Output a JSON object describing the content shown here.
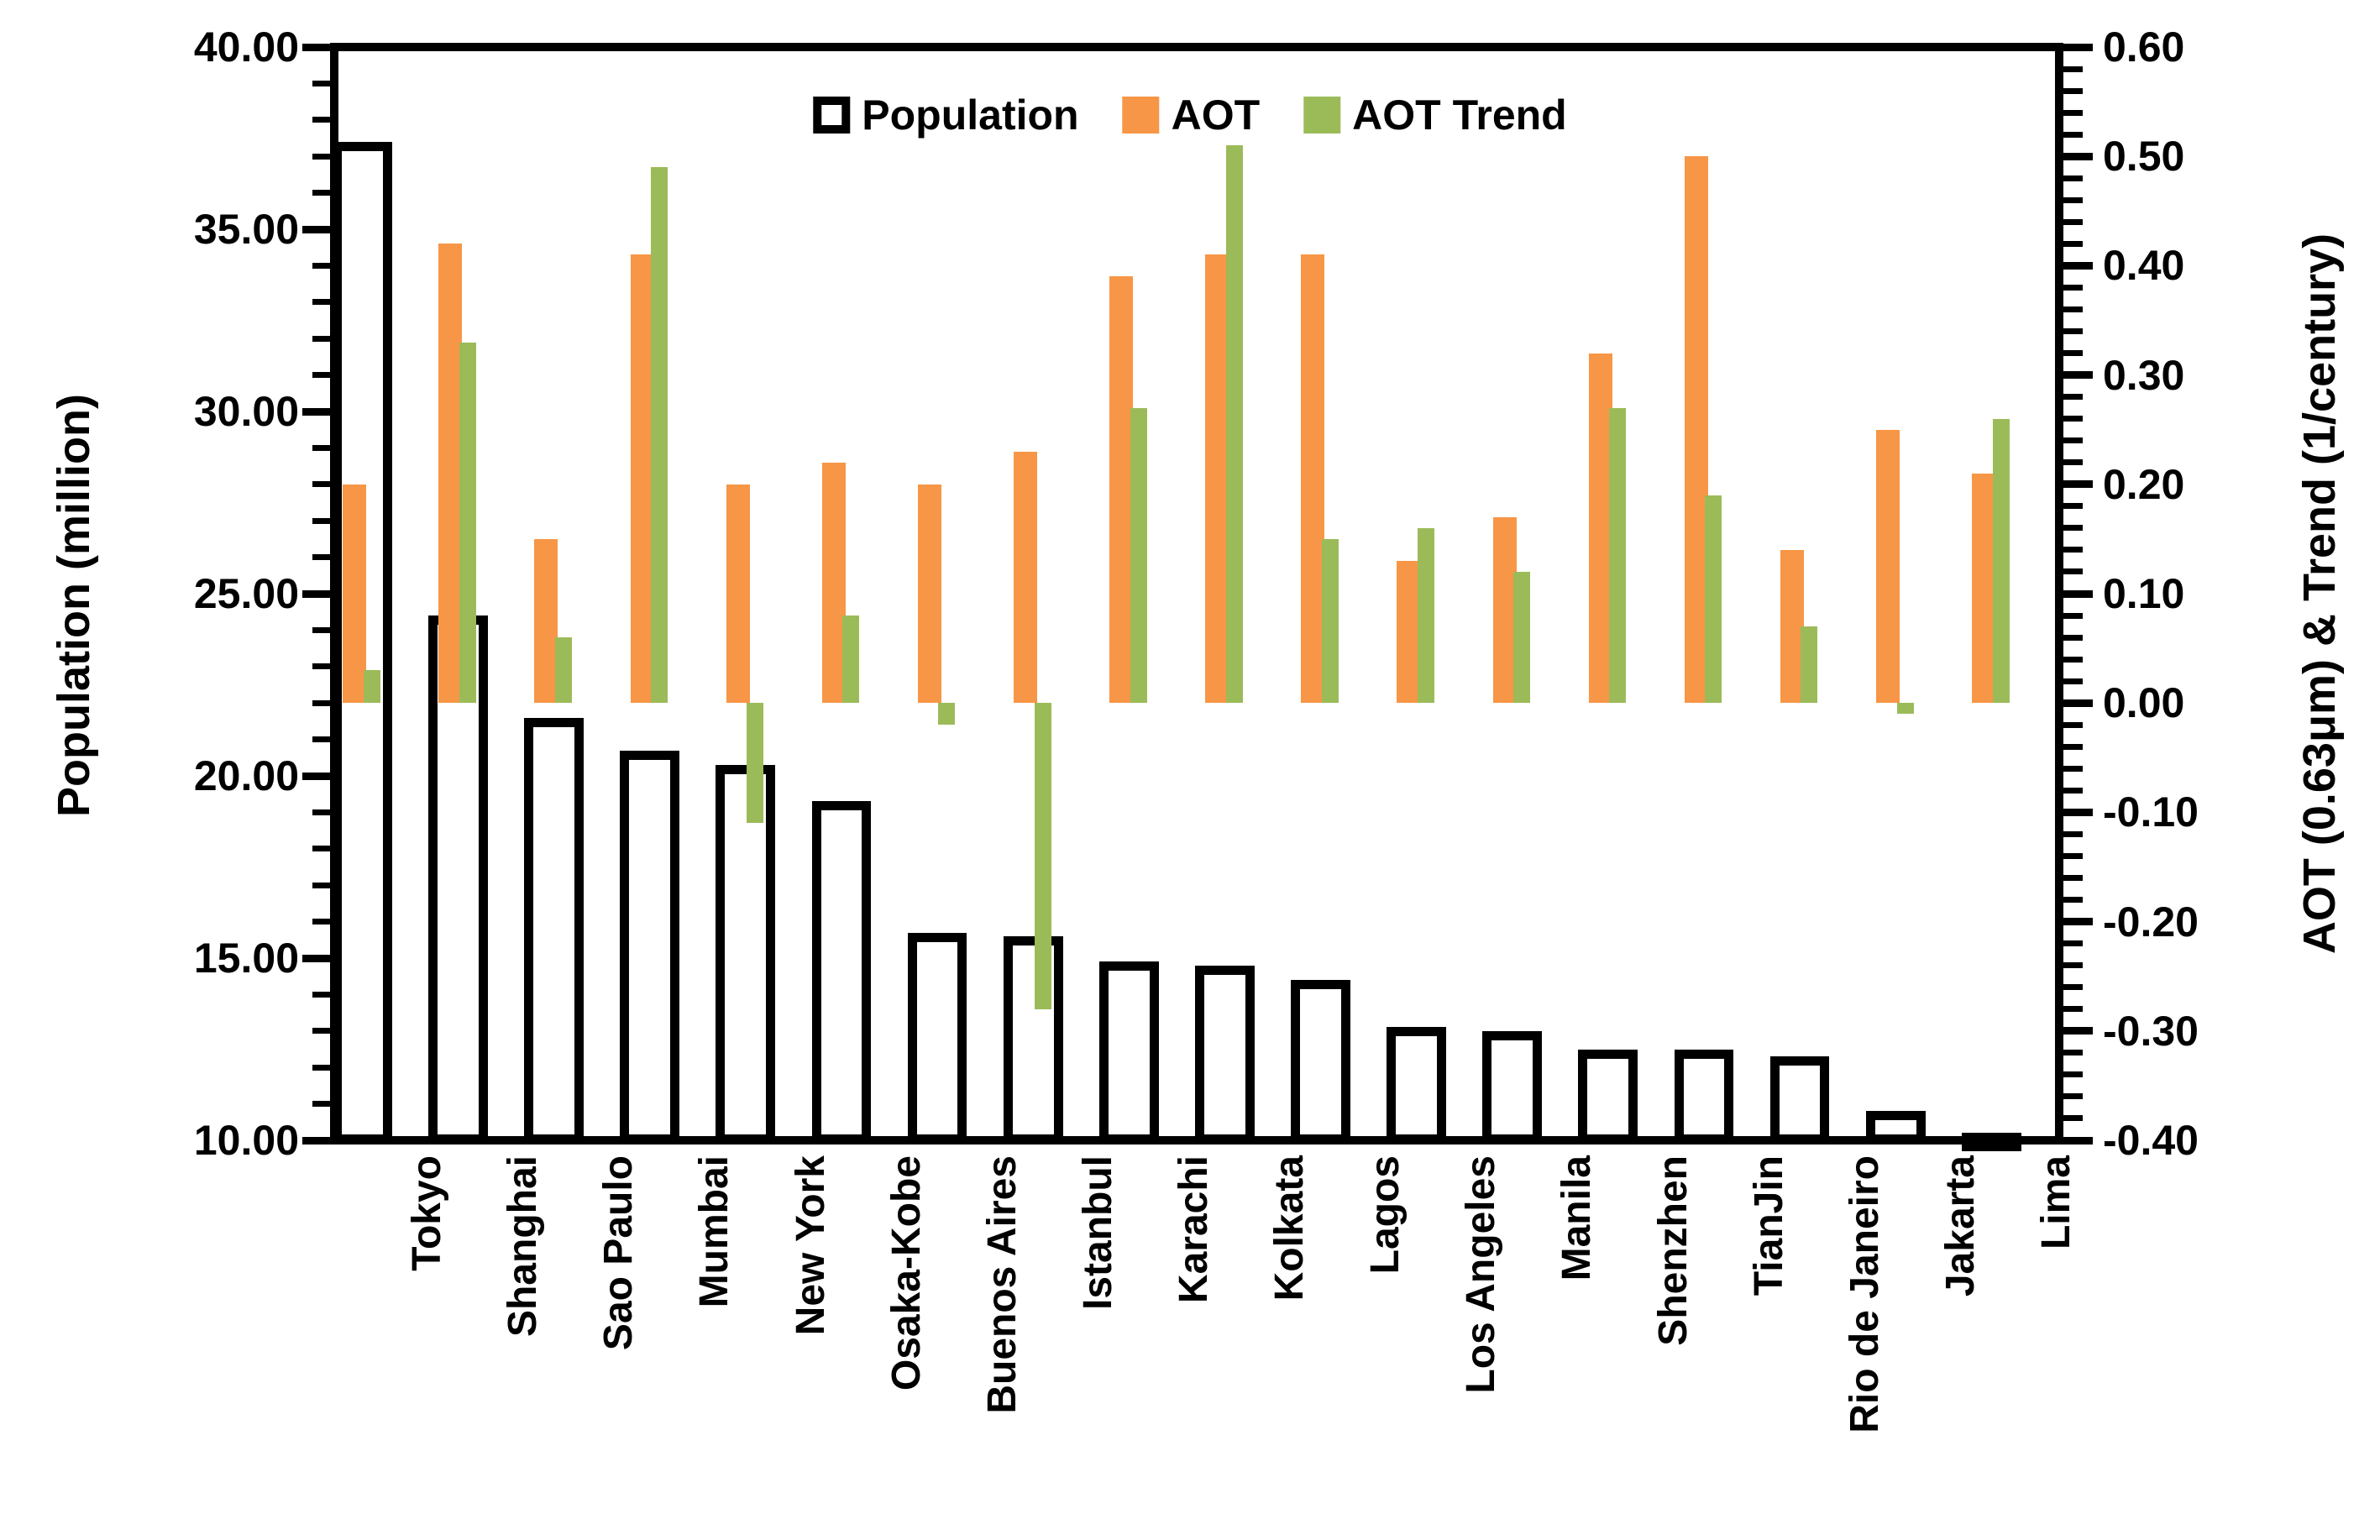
{
  "chart_data": {
    "type": "bar",
    "title": "",
    "categories": [
      "Tokyo",
      "Shanghai",
      "Sao Paulo",
      "Mumbai",
      "New York",
      "Osaka-Kobe",
      "Buenos Aires",
      "Istanbul",
      "Karachi",
      "Kolkata",
      "Lagos",
      "Los Angeles",
      "Manila",
      "Shenzhen",
      "TianJin",
      "Rio de Janeiro",
      "Jakarta",
      "Lima"
    ],
    "series": [
      {
        "name": "Population",
        "axis": "left",
        "style": "outline",
        "color": "#FFFFFF",
        "border_color": "#000000",
        "values": [
          37.4,
          24.4,
          21.6,
          20.7,
          20.3,
          19.3,
          15.7,
          15.6,
          14.9,
          14.8,
          14.4,
          13.1,
          13.0,
          12.5,
          12.5,
          12.3,
          10.8,
          10.2
        ]
      },
      {
        "name": "AOT",
        "axis": "right",
        "style": "fill",
        "color": "#F79646",
        "values": [
          0.2,
          0.42,
          0.15,
          0.41,
          0.2,
          0.22,
          0.2,
          0.23,
          0.39,
          0.41,
          0.41,
          0.13,
          0.17,
          0.32,
          0.5,
          0.14,
          0.25,
          0.21
        ]
      },
      {
        "name": "AOT Trend",
        "axis": "right",
        "style": "fill",
        "color": "#9BBB59",
        "values": [
          0.03,
          0.33,
          0.06,
          0.49,
          -0.11,
          0.08,
          -0.02,
          -0.28,
          0.27,
          0.51,
          0.15,
          0.16,
          0.12,
          0.27,
          0.19,
          0.07,
          -0.01,
          0.26
        ]
      }
    ],
    "left_axis": {
      "label": "Population (million)",
      "min": 10,
      "max": 40,
      "major_step": 5,
      "minor_step": 1,
      "decimals": 2
    },
    "right_axis": {
      "label": "AOT (0.63μm) & Trend (1/century)",
      "min": -0.4,
      "max": 0.6,
      "major_step": 0.1,
      "minor_step": 0.02,
      "decimals": 2
    },
    "legend": [
      {
        "label": "Population",
        "swatch": "outline"
      },
      {
        "label": "AOT",
        "swatch": "#F79646"
      },
      {
        "label": "AOT Trend",
        "swatch": "#9BBB59"
      }
    ],
    "grid": false,
    "legend_position": "top-center"
  },
  "colors": {
    "background": "#FFFFFF",
    "axis": "#000000",
    "text": "#000000",
    "aot_orange": "#F79646",
    "trend_green": "#9BBB59"
  }
}
